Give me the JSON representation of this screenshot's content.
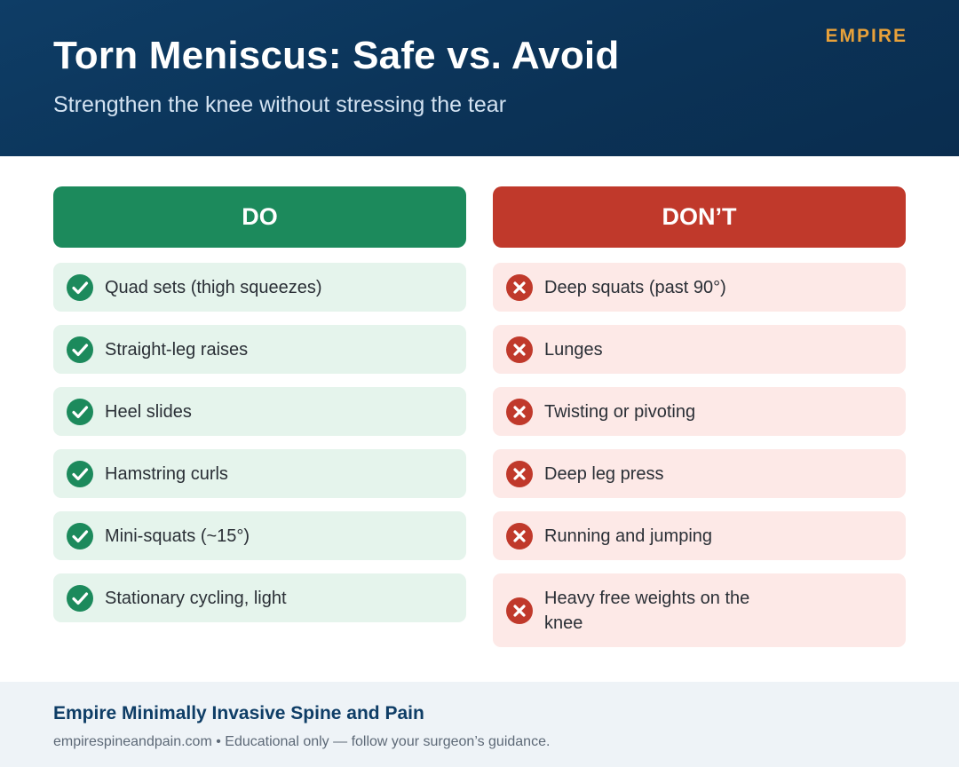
{
  "header": {
    "title": "Torn Meniscus: Safe vs. Avoid",
    "subtitle": "Strengthen the knee without stressing the tear",
    "brand": "EMPIRE"
  },
  "do_column": {
    "heading": "DO",
    "icon": "check-circle-icon",
    "color": "#1c8a5c",
    "items": [
      "Quad sets (thigh squeezes)",
      "Straight-leg raises",
      "Heel slides",
      "Hamstring curls",
      "Mini-squats (~15°)",
      "Stationary cycling, light"
    ]
  },
  "dont_column": {
    "heading": "DON’T",
    "icon": "x-circle-icon",
    "color": "#c0392b",
    "items": [
      "Deep squats (past 90°)",
      "Lunges",
      "Twisting or pivoting",
      "Deep leg press",
      "Running and jumping",
      "Heavy free weights on the knee"
    ]
  },
  "footer": {
    "title": "Empire Minimally Invasive Spine and Pain",
    "note": "empirespineandpain.com • Educational only — follow your surgeon’s guidance."
  }
}
